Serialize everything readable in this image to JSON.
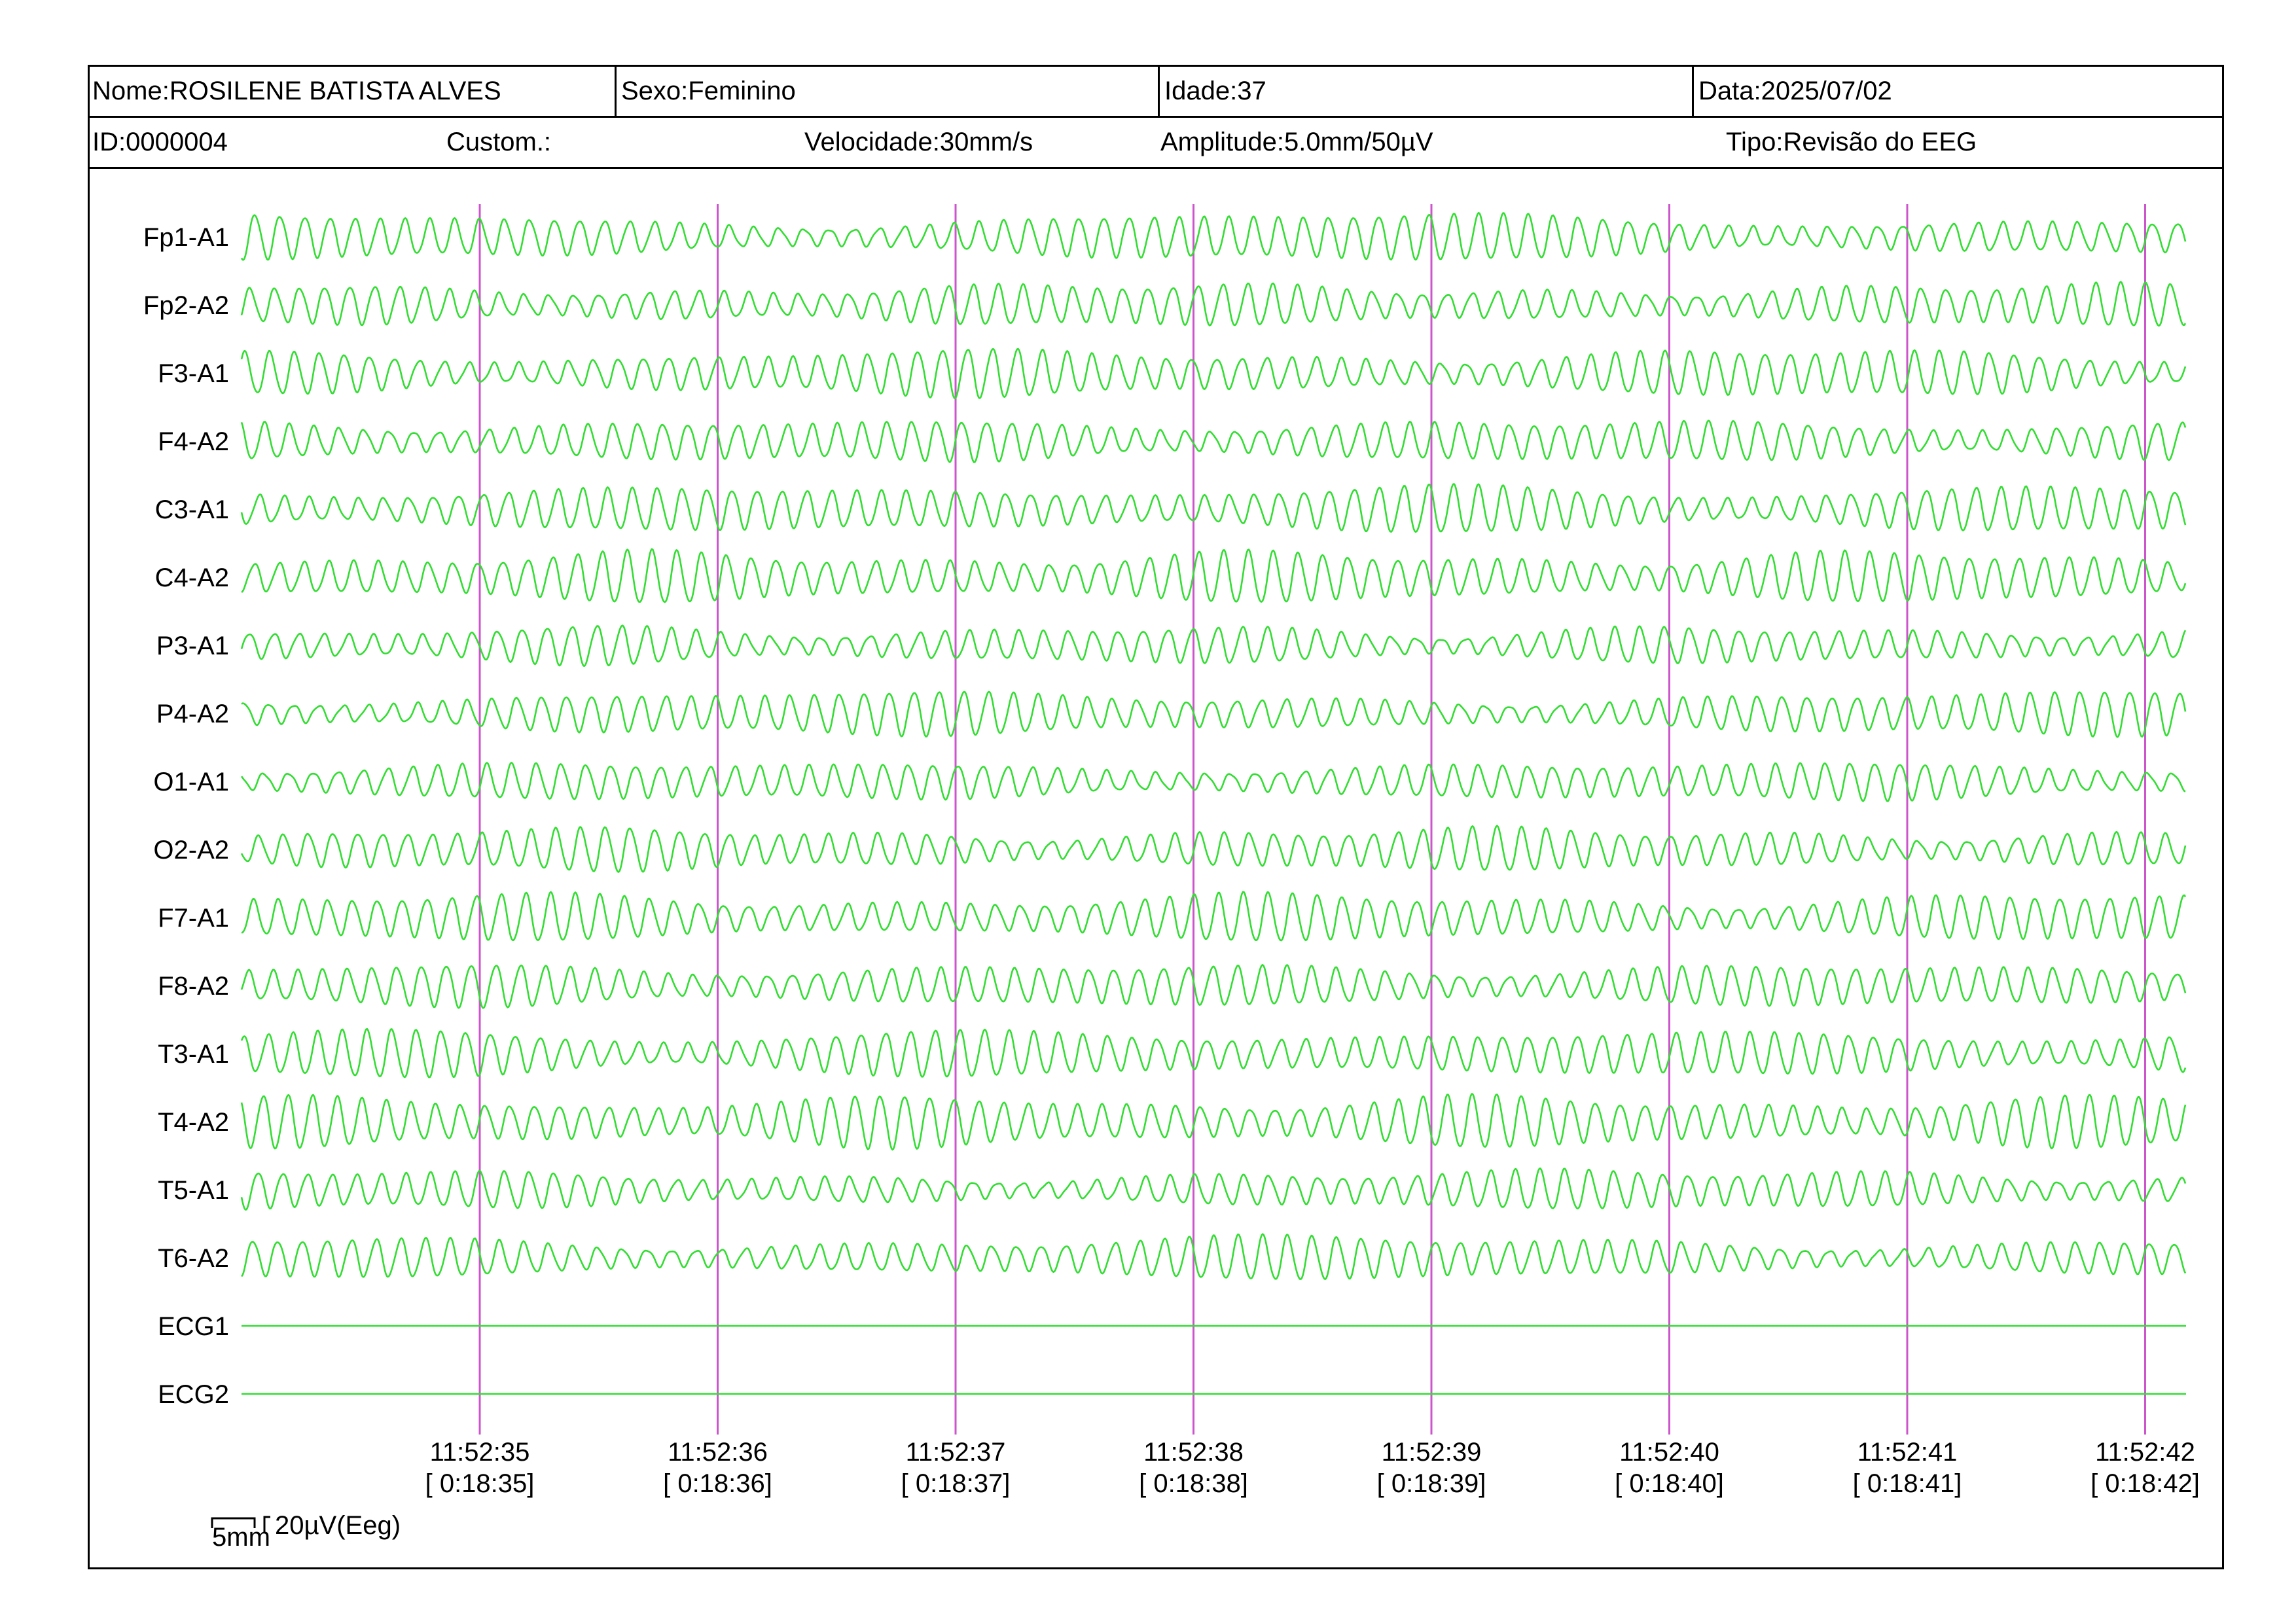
{
  "header": {
    "row1": {
      "nome": "Nome:ROSILENE BATISTA ALVES",
      "sexo": "Sexo:Feminino",
      "idade": "Idade:37",
      "data": "Data:2025/07/02"
    },
    "row2": {
      "id": "ID:0000004",
      "custom": "Custom.:",
      "velocidade": "Velocidade:30mm/s",
      "amplitude": "Amplitude:5.0mm/50µV",
      "tipo": "Tipo:Revisão do EEG"
    }
  },
  "colors": {
    "trace": "#33dd33",
    "marker": "#cc55cc",
    "border": "#000000"
  },
  "chart_data": {
    "type": "line",
    "channels": [
      "Fp1-A1",
      "Fp2-A2",
      "F3-A1",
      "F4-A2",
      "C3-A1",
      "C4-A2",
      "P3-A1",
      "P4-A2",
      "O1-A1",
      "O2-A2",
      "F7-A1",
      "F8-A2",
      "T3-A1",
      "T4-A2",
      "T5-A1",
      "T6-A2",
      "ECG1",
      "ECG2"
    ],
    "flat_channels": [
      "ECG1",
      "ECG2"
    ],
    "time_ticks": [
      {
        "clock": "11:52:35",
        "elapsed": "[ 0:18:35]",
        "seconds": 1
      },
      {
        "clock": "11:52:36",
        "elapsed": "[ 0:18:36]",
        "seconds": 2
      },
      {
        "clock": "11:52:37",
        "elapsed": "[ 0:18:37]",
        "seconds": 3
      },
      {
        "clock": "11:52:38",
        "elapsed": "[ 0:18:38]",
        "seconds": 4
      },
      {
        "clock": "11:52:39",
        "elapsed": "[ 0:18:39]",
        "seconds": 5
      },
      {
        "clock": "11:52:40",
        "elapsed": "[ 0:18:40]",
        "seconds": 6
      },
      {
        "clock": "11:52:41",
        "elapsed": "[ 0:18:41]",
        "seconds": 7
      },
      {
        "clock": "11:52:42",
        "elapsed": "[ 0:18:42]",
        "seconds": 8
      }
    ],
    "x_range_seconds": [
      0,
      8.2
    ],
    "dominant_frequency_hz": 9.5,
    "scale_bar": {
      "time": "5mm",
      "amplitude": "20µV(Eeg)"
    },
    "grid": false
  }
}
